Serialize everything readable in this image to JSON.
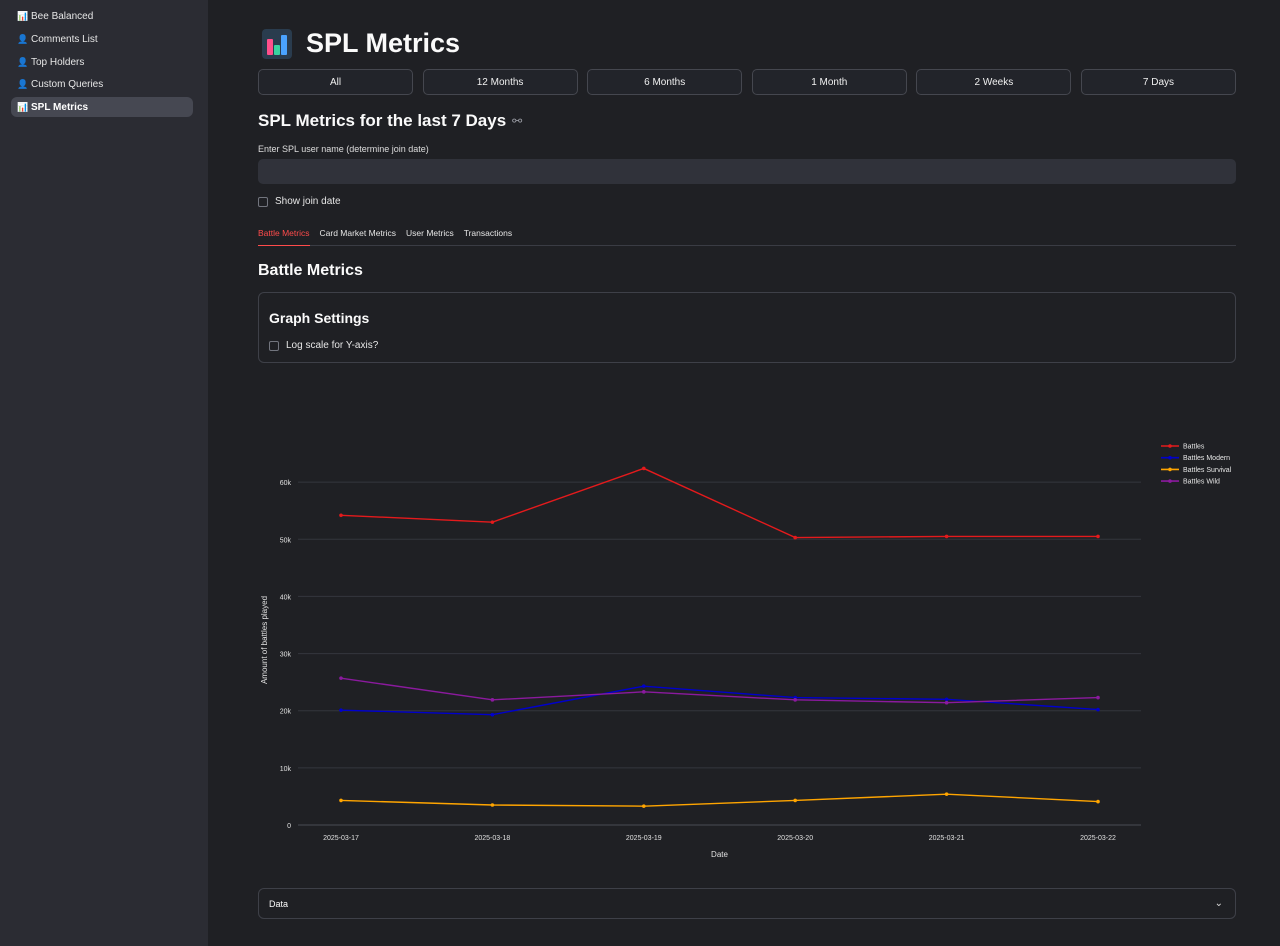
{
  "sidebar": {
    "items": [
      {
        "label": "Bee Balanced",
        "icon": "bar-chart-icon",
        "active": false
      },
      {
        "label": "Comments List",
        "icon": "person-icon",
        "active": false
      },
      {
        "label": "Top Holders",
        "icon": "person-icon",
        "active": false
      },
      {
        "label": "Custom Queries",
        "icon": "person-icon",
        "active": false
      },
      {
        "label": "SPL Metrics",
        "icon": "bar-chart-icon",
        "active": true
      }
    ]
  },
  "page": {
    "title": "SPL Metrics",
    "title_icon": "bar-chart-icon",
    "ranges": [
      "All",
      "12 Months",
      "6 Months",
      "1 Month",
      "2 Weeks",
      "7 Days"
    ],
    "subheader": "SPL Metrics for the last 7 Days",
    "input_label": "Enter SPL user name (determine join date)",
    "input_value": "",
    "show_join_date_label": "Show join date",
    "tabs": [
      "Battle Metrics",
      "Card Market Metrics",
      "User Metrics",
      "Transactions"
    ],
    "active_tab": "Battle Metrics",
    "section_title": "Battle Metrics",
    "graph_settings_title": "Graph Settings",
    "log_scale_label": "Log scale for Y-axis?",
    "data_expander_label": "Data"
  },
  "colors": {
    "accent": "#ff4b4b",
    "background": "#1f2024",
    "sidebar": "#2b2c33"
  },
  "chart_data": {
    "type": "line",
    "x": [
      "2025-03-17",
      "2025-03-18",
      "2025-03-19",
      "2025-03-20",
      "2025-03-21",
      "2025-03-22"
    ],
    "series": [
      {
        "name": "Battles",
        "color": "#e41a1c",
        "values": [
          54200,
          53000,
          62400,
          50300,
          50500,
          50500
        ]
      },
      {
        "name": "Battles Modern",
        "color": "#0000cc",
        "values": [
          20100,
          19300,
          24300,
          22300,
          22000,
          20200
        ]
      },
      {
        "name": "Battles Survival",
        "color": "#ffa500",
        "values": [
          4300,
          3500,
          3300,
          4300,
          5400,
          4100
        ]
      },
      {
        "name": "Battles Wild",
        "color": "#8b1a9e",
        "values": [
          25700,
          21900,
          23300,
          21900,
          21400,
          22300
        ]
      }
    ],
    "xlabel": "Date",
    "ylabel": "Amount of battles played",
    "ylim": [
      0,
      70000
    ],
    "yticks": [
      0,
      10000,
      20000,
      30000,
      40000,
      50000,
      60000
    ],
    "ytick_labels": [
      "0",
      "10k",
      "20k",
      "30k",
      "40k",
      "50k",
      "60k"
    ],
    "grid": true,
    "legend": "top-right"
  }
}
